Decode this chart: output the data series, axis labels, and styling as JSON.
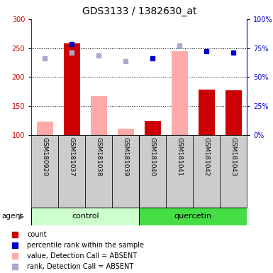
{
  "title": "GDS3133 / 1382630_at",
  "samples": [
    "GSM180920",
    "GSM181037",
    "GSM181038",
    "GSM181039",
    "GSM181040",
    "GSM181041",
    "GSM181042",
    "GSM181043"
  ],
  "ylim_left": [
    100,
    300
  ],
  "ylim_right": [
    0,
    100
  ],
  "yticks_left": [
    100,
    150,
    200,
    250,
    300
  ],
  "yticks_right": [
    0,
    25,
    50,
    75,
    100
  ],
  "bar_values_red": [
    null,
    258,
    null,
    null,
    125,
    null,
    178,
    177
  ],
  "bar_values_pink": [
    123,
    null,
    168,
    111,
    null,
    245,
    null,
    null
  ],
  "scatter_blue": [
    null,
    257,
    null,
    null,
    233,
    null,
    245,
    242
  ],
  "scatter_lavender": [
    233,
    242,
    237,
    228,
    null,
    254,
    null,
    null
  ],
  "bar_color_red": "#cc0000",
  "bar_color_pink": "#ffaaaa",
  "scatter_color_blue": "#0000cc",
  "scatter_color_lavender": "#aaaacc",
  "left_color": "#cc0000",
  "right_color": "#0000cc",
  "control_color": "#ccffcc",
  "quercetin_color": "#44dd44",
  "sample_bg_color": "#cccccc",
  "legend_items": [
    {
      "color": "#cc0000",
      "label": "count"
    },
    {
      "color": "#0000cc",
      "label": "percentile rank within the sample"
    },
    {
      "color": "#ffaaaa",
      "label": "value, Detection Call = ABSENT"
    },
    {
      "color": "#aaaacc",
      "label": "rank, Detection Call = ABSENT"
    }
  ],
  "title_fontsize": 10,
  "tick_fontsize": 7,
  "legend_fontsize": 7,
  "sample_fontsize": 6.5,
  "group_fontsize": 8
}
